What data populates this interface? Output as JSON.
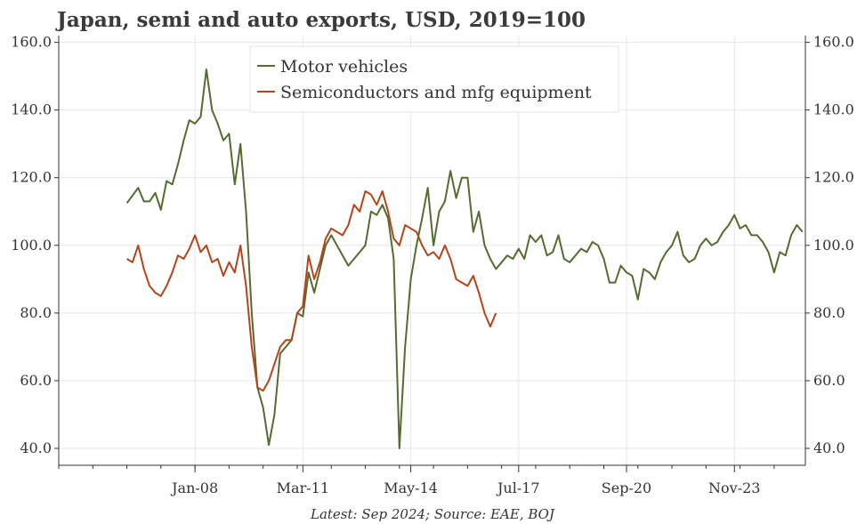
{
  "chart_data": {
    "type": "line",
    "title": "Japan, semi and auto exports, USD, 2019=100",
    "footnote": "Latest: Sep 2024; Source: EAE, BOJ",
    "ylim": [
      35,
      162
    ],
    "y_ticks": [
      40,
      60,
      80,
      100,
      120,
      140,
      160
    ],
    "y_tick_labels": [
      "40.0",
      "60.0",
      "80.0",
      "100.0",
      "120.0",
      "140.0",
      "160.0"
    ],
    "x_range": [
      "2004-01",
      "2025-12"
    ],
    "x_ticks": [
      "2008-01",
      "2011-03",
      "2014-05",
      "2017-07",
      "2020-09",
      "2023-11"
    ],
    "x_tick_labels": [
      "Jan-08",
      "Mar-11",
      "May-14",
      "Jul-17",
      "Sep-20",
      "Nov-23"
    ],
    "legend_position": "top-center",
    "grid": true,
    "series": [
      {
        "name": "Motor vehicles",
        "color": "#556b2f",
        "points": [
          [
            "2006-01",
            112.5
          ],
          [
            "2006-05",
            117
          ],
          [
            "2006-07",
            113
          ],
          [
            "2006-09",
            113
          ],
          [
            "2006-11",
            115.5
          ],
          [
            "2007-01",
            110.5
          ],
          [
            "2007-03",
            119
          ],
          [
            "2007-05",
            118
          ],
          [
            "2007-07",
            124
          ],
          [
            "2007-09",
            131
          ],
          [
            "2007-11",
            137
          ],
          [
            "2008-01",
            136
          ],
          [
            "2008-03",
            138
          ],
          [
            "2008-05",
            152
          ],
          [
            "2008-07",
            140
          ],
          [
            "2008-09",
            136
          ],
          [
            "2008-11",
            131
          ],
          [
            "2009-01",
            133
          ],
          [
            "2009-03",
            118
          ],
          [
            "2009-05",
            130
          ],
          [
            "2009-07",
            110
          ],
          [
            "2009-09",
            80
          ],
          [
            "2009-11",
            58
          ],
          [
            "2010-01",
            52
          ],
          [
            "2010-03",
            41
          ],
          [
            "2010-05",
            50
          ],
          [
            "2010-07",
            68
          ],
          [
            "2010-09",
            70
          ],
          [
            "2010-11",
            72
          ],
          [
            "2011-01",
            80
          ],
          [
            "2011-03",
            79
          ],
          [
            "2011-05",
            92
          ],
          [
            "2011-07",
            86
          ],
          [
            "2011-09",
            93
          ],
          [
            "2011-11",
            100
          ],
          [
            "2012-01",
            103
          ],
          [
            "2012-03",
            100
          ],
          [
            "2012-05",
            97
          ],
          [
            "2012-07",
            94
          ],
          [
            "2012-09",
            96
          ],
          [
            "2012-11",
            98
          ],
          [
            "2013-01",
            100
          ],
          [
            "2013-03",
            110
          ],
          [
            "2013-05",
            109
          ],
          [
            "2013-07",
            112
          ],
          [
            "2013-09",
            108
          ],
          [
            "2013-11",
            96
          ],
          [
            "2014-01",
            40
          ],
          [
            "2014-03",
            70
          ],
          [
            "2014-05",
            90
          ],
          [
            "2014-07",
            100
          ],
          [
            "2014-09",
            108
          ],
          [
            "2014-11",
            117
          ],
          [
            "2015-01",
            100
          ],
          [
            "2015-03",
            110
          ],
          [
            "2015-05",
            113
          ],
          [
            "2015-07",
            122
          ],
          [
            "2015-09",
            114
          ],
          [
            "2015-11",
            120
          ],
          [
            "2016-01",
            120
          ],
          [
            "2016-03",
            104
          ],
          [
            "2016-05",
            110
          ],
          [
            "2016-07",
            100
          ],
          [
            "2016-09",
            96
          ],
          [
            "2016-11",
            93
          ],
          [
            "2017-01",
            95
          ],
          [
            "2017-03",
            97
          ],
          [
            "2017-05",
            96
          ],
          [
            "2017-07",
            99
          ],
          [
            "2017-09",
            96
          ],
          [
            "2017-11",
            103
          ],
          [
            "2018-01",
            101
          ],
          [
            "2018-03",
            103
          ],
          [
            "2018-05",
            97
          ],
          [
            "2018-07",
            98
          ],
          [
            "2018-09",
            103
          ],
          [
            "2018-11",
            96
          ],
          [
            "2019-01",
            95
          ],
          [
            "2019-03",
            97
          ],
          [
            "2019-05",
            99
          ],
          [
            "2019-07",
            98
          ],
          [
            "2019-09",
            101
          ],
          [
            "2019-11",
            100
          ],
          [
            "2020-01",
            96
          ],
          [
            "2020-03",
            89
          ],
          [
            "2020-05",
            89
          ],
          [
            "2020-07",
            94
          ],
          [
            "2020-09",
            92
          ],
          [
            "2020-11",
            91
          ],
          [
            "2021-01",
            84
          ],
          [
            "2021-03",
            93
          ],
          [
            "2021-05",
            92
          ],
          [
            "2021-07",
            90
          ],
          [
            "2021-09",
            95
          ],
          [
            "2021-11",
            98
          ],
          [
            "2022-01",
            100
          ],
          [
            "2022-03",
            104
          ],
          [
            "2022-05",
            97
          ],
          [
            "2022-07",
            95
          ],
          [
            "2022-09",
            96
          ],
          [
            "2022-11",
            100
          ],
          [
            "2023-01",
            102
          ],
          [
            "2023-03",
            100
          ],
          [
            "2023-05",
            101
          ],
          [
            "2023-07",
            104
          ],
          [
            "2023-09",
            106
          ],
          [
            "2023-11",
            109
          ],
          [
            "2024-01",
            105
          ],
          [
            "2024-03",
            106
          ],
          [
            "2024-05",
            103
          ],
          [
            "2024-07",
            103
          ],
          [
            "2024-09",
            101
          ],
          [
            "2024-11",
            98
          ],
          [
            "2025-01",
            92
          ],
          [
            "2025-03",
            98
          ],
          [
            "2025-05",
            97
          ],
          [
            "2025-07",
            103
          ],
          [
            "2025-09",
            106
          ],
          [
            "2025-11",
            104
          ]
        ]
      },
      {
        "name": "Semiconductors and mfg equipment",
        "color": "#b5441a",
        "points": [
          [
            "2006-01",
            96
          ],
          [
            "2006-03",
            95
          ],
          [
            "2006-05",
            100
          ],
          [
            "2006-07",
            93
          ],
          [
            "2006-09",
            88
          ],
          [
            "2006-11",
            86
          ],
          [
            "2007-01",
            85
          ],
          [
            "2007-03",
            88
          ],
          [
            "2007-05",
            92
          ],
          [
            "2007-07",
            97
          ],
          [
            "2007-09",
            96
          ],
          [
            "2007-11",
            99
          ],
          [
            "2008-01",
            103
          ],
          [
            "2008-03",
            98
          ],
          [
            "2008-05",
            100
          ],
          [
            "2008-07",
            95
          ],
          [
            "2008-09",
            96
          ],
          [
            "2008-11",
            91
          ],
          [
            "2009-01",
            95
          ],
          [
            "2009-03",
            92
          ],
          [
            "2009-05",
            100
          ],
          [
            "2009-07",
            88
          ],
          [
            "2009-09",
            70
          ],
          [
            "2009-11",
            58
          ],
          [
            "2010-01",
            57
          ],
          [
            "2010-03",
            60
          ],
          [
            "2010-05",
            65
          ],
          [
            "2010-07",
            70
          ],
          [
            "2010-09",
            72
          ],
          [
            "2010-11",
            72
          ],
          [
            "2011-01",
            80
          ],
          [
            "2011-03",
            82
          ],
          [
            "2011-05",
            97
          ],
          [
            "2011-07",
            90
          ],
          [
            "2011-09",
            95
          ],
          [
            "2011-11",
            102
          ],
          [
            "2012-01",
            105
          ],
          [
            "2012-03",
            104
          ],
          [
            "2012-05",
            103
          ],
          [
            "2012-07",
            106
          ],
          [
            "2012-09",
            112
          ],
          [
            "2012-11",
            110
          ],
          [
            "2013-01",
            116
          ],
          [
            "2013-03",
            115
          ],
          [
            "2013-05",
            112
          ],
          [
            "2013-07",
            116
          ],
          [
            "2013-09",
            110
          ],
          [
            "2013-11",
            102
          ],
          [
            "2014-01",
            100
          ],
          [
            "2014-03",
            106
          ],
          [
            "2014-05",
            105
          ],
          [
            "2014-07",
            104
          ],
          [
            "2014-09",
            100
          ],
          [
            "2014-11",
            97
          ],
          [
            "2015-01",
            98
          ],
          [
            "2015-03",
            96
          ],
          [
            "2015-05",
            100
          ],
          [
            "2015-07",
            96
          ],
          [
            "2015-09",
            90
          ],
          [
            "2015-11",
            89
          ],
          [
            "2016-01",
            88
          ],
          [
            "2016-03",
            91
          ],
          [
            "2016-05",
            86
          ],
          [
            "2016-07",
            80
          ],
          [
            "2016-09",
            76
          ],
          [
            "2016-11",
            80
          ]
        ]
      }
    ]
  }
}
